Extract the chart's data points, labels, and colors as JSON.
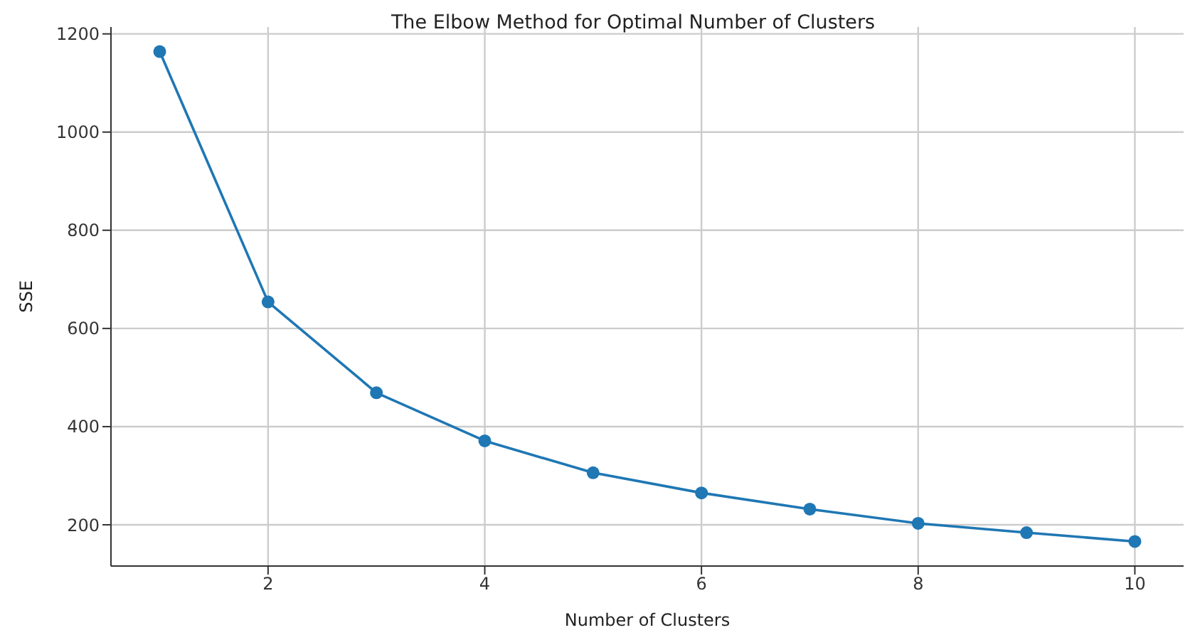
{
  "chart_data": {
    "type": "line",
    "title": "The Elbow Method for Optimal Number of Clusters",
    "xlabel": "Number of Clusters",
    "ylabel": "SSE",
    "x": [
      1,
      2,
      3,
      4,
      5,
      6,
      7,
      8,
      9,
      10
    ],
    "series": [
      {
        "color": "#1f77b4",
        "values": [
          1164,
          654,
          469,
          371,
          306,
          265,
          232,
          203,
          184,
          166
        ]
      }
    ],
    "xlim": [
      0.55,
      10.45
    ],
    "xticks": [
      2,
      4,
      6,
      8,
      10
    ],
    "ylim": [
      116,
      1214
    ],
    "yticks": [
      200,
      400,
      600,
      800,
      1000,
      1200
    ],
    "grid": true,
    "marker": "circle",
    "line_style": "solid",
    "legend": false
  }
}
